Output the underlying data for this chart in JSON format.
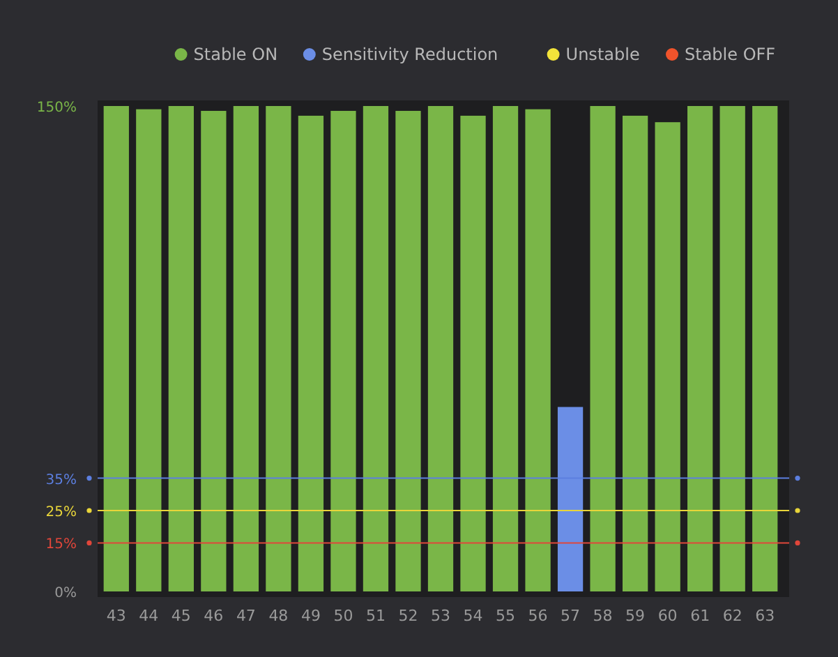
{
  "chart_data": {
    "type": "bar",
    "categories": [
      "43",
      "44",
      "45",
      "46",
      "47",
      "48",
      "49",
      "50",
      "51",
      "52",
      "53",
      "54",
      "55",
      "56",
      "57",
      "58",
      "59",
      "60",
      "61",
      "62",
      "63"
    ],
    "series": [
      {
        "name": "Stable ON",
        "color": "#7ab648",
        "values": [
          150,
          149,
          150,
          148.5,
          150,
          150,
          147,
          148.5,
          150,
          148.5,
          150,
          147,
          150,
          149,
          null,
          150,
          147,
          145,
          150,
          150,
          150
        ]
      },
      {
        "name": "Sensitivity Reduction",
        "color": "#6b8ee6",
        "values": [
          null,
          null,
          null,
          null,
          null,
          null,
          null,
          null,
          null,
          null,
          null,
          null,
          null,
          null,
          57,
          null,
          null,
          null,
          null,
          null,
          null
        ]
      },
      {
        "name": "Unstable",
        "color": "#f2e33a",
        "values": [
          null,
          null,
          null,
          null,
          null,
          null,
          null,
          null,
          null,
          null,
          null,
          null,
          null,
          null,
          null,
          null,
          null,
          null,
          null,
          null,
          null
        ]
      },
      {
        "name": "Stable OFF",
        "color": "#f0532b",
        "values": [
          null,
          null,
          null,
          null,
          null,
          null,
          null,
          null,
          null,
          null,
          null,
          null,
          null,
          null,
          null,
          null,
          null,
          null,
          null,
          null,
          null
        ]
      }
    ],
    "ylim": [
      0,
      150
    ],
    "yticks": [
      {
        "value": 0,
        "label": "0%"
      },
      {
        "value": 15,
        "label": "15%"
      },
      {
        "value": 25,
        "label": "25%"
      },
      {
        "value": 35,
        "label": "35%"
      },
      {
        "value": 150,
        "label": "150%"
      }
    ],
    "ref_lines": [
      {
        "axis": "y",
        "value": 15,
        "color": "#e0463a"
      },
      {
        "axis": "y",
        "value": 25,
        "color": "#e8d53a"
      },
      {
        "axis": "y",
        "value": 35,
        "color": "#5c7fe0"
      }
    ],
    "grid": false,
    "legend": "top right"
  }
}
